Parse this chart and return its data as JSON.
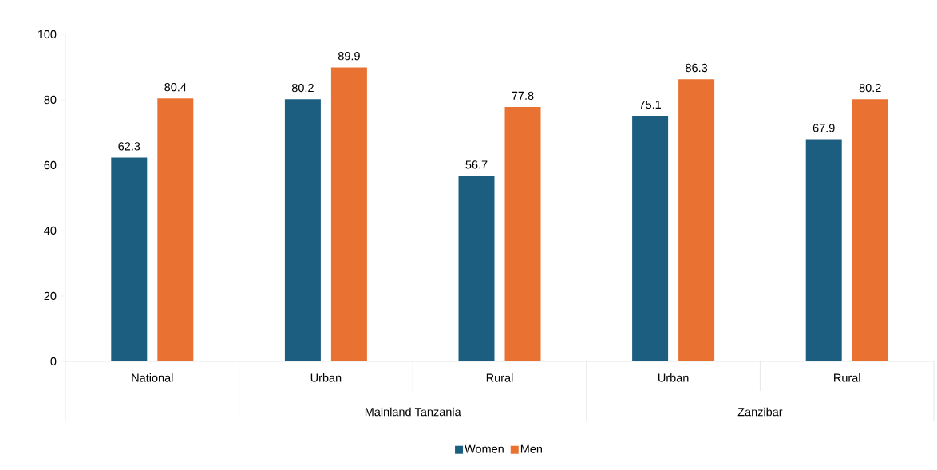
{
  "chart_data": {
    "type": "bar",
    "categories": [
      "National",
      "Urban",
      "Rural",
      "Urban",
      "Rural"
    ],
    "series": [
      {
        "name": "Women",
        "color": "#1b5e7f",
        "values": [
          62.3,
          80.2,
          56.7,
          75.1,
          67.9
        ]
      },
      {
        "name": "Men",
        "color": "#e97132",
        "values": [
          80.4,
          89.9,
          77.8,
          86.3,
          80.2
        ]
      }
    ],
    "annotations": [
      "Mainland Tanzania",
      "Zanzibar"
    ],
    "ylim": [
      0,
      100
    ],
    "yticks": [
      0,
      20,
      40,
      60,
      80,
      100
    ],
    "data_labels": true,
    "legend": "bottom",
    "grid": false
  }
}
